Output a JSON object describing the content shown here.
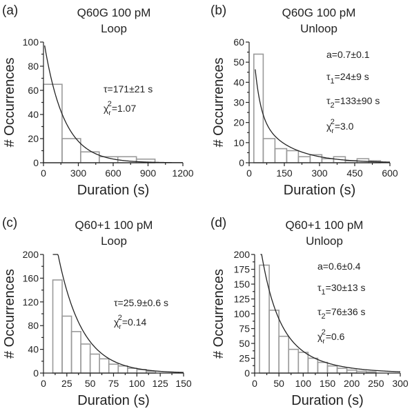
{
  "chart_data": [
    {
      "type": "bar",
      "panel_label": "(a)",
      "title": "Q60G 100 pM",
      "subtitle": "Loop",
      "xlabel": "Duration (s)",
      "ylabel": "# Occurrences",
      "xlim": [
        0,
        1200
      ],
      "ylim": [
        0,
        100
      ],
      "xticks": [
        0,
        300,
        600,
        900,
        1200
      ],
      "yticks": [
        0,
        20,
        40,
        60,
        80,
        100
      ],
      "bin_edges": [
        0,
        160,
        320,
        480,
        640,
        800,
        960
      ],
      "values": [
        65,
        20,
        9,
        5,
        5,
        3
      ],
      "fit": {
        "type": "exponential",
        "amplitude": 103,
        "tau": 171,
        "x_start": 10
      },
      "annotations": [
        "τ=171±21 s",
        "χr2=1.07"
      ]
    },
    {
      "type": "bar",
      "panel_label": "(b)",
      "title": "Q60G 100 pM",
      "subtitle": "Unloop",
      "xlabel": "Duration (s)",
      "ylabel": "# Occurrences",
      "xlim": [
        0,
        600
      ],
      "ylim": [
        0,
        60
      ],
      "xticks": [
        0,
        150,
        300,
        450,
        600
      ],
      "yticks": [
        0,
        10,
        20,
        30,
        40,
        50,
        60
      ],
      "bin_edges": [
        20,
        60,
        110,
        160,
        210,
        260,
        310,
        360,
        410,
        460,
        510,
        560
      ],
      "values": [
        54,
        12,
        7,
        6,
        3,
        4,
        2,
        3,
        1,
        2,
        1
      ],
      "fit": {
        "type": "double-exponential",
        "amplitude": 96,
        "a": 0.7,
        "tau1": 24,
        "tau2": 133,
        "x_start": 26
      },
      "annotations": [
        "a=0.7±0.1",
        "τ1=24±9 s",
        "τ2=133±90 s",
        "χr2=3.0"
      ]
    },
    {
      "type": "bar",
      "panel_label": "(c)",
      "title": "Q60+1 100 pM",
      "subtitle": "Loop",
      "xlabel": "Duration (s)",
      "ylabel": "# Occurrences",
      "xlim": [
        0,
        150
      ],
      "ylim": [
        0,
        200
      ],
      "xticks": [
        0,
        25,
        50,
        75,
        100,
        125,
        150
      ],
      "yticks": [
        0,
        40,
        80,
        120,
        160,
        200
      ],
      "bin_edges": [
        10,
        20,
        30,
        40,
        50,
        60,
        70,
        80,
        90,
        100,
        110,
        120
      ],
      "values": [
        157,
        96,
        70,
        49,
        32,
        24,
        15,
        12,
        8,
        6,
        3
      ],
      "fit": {
        "type": "exponential",
        "amplitude": 365,
        "tau": 25.9,
        "x_start": 10
      },
      "annotations": [
        "τ=25.9±0.6 s",
        "χr2=0.14"
      ]
    },
    {
      "type": "bar",
      "panel_label": "(d)",
      "title": "Q60+1 100 pM",
      "subtitle": "Unloop",
      "xlabel": "Duration (s)",
      "ylabel": "# Occurrences",
      "xlim": [
        0,
        300
      ],
      "ylim": [
        0,
        200
      ],
      "xticks": [
        0,
        50,
        100,
        150,
        200,
        250,
        300
      ],
      "yticks": [
        0,
        25,
        50,
        75,
        100,
        125,
        150,
        175,
        200
      ],
      "bin_edges": [
        10,
        30,
        50,
        70,
        90,
        110,
        130,
        150,
        170,
        190,
        210,
        230,
        250
      ],
      "values": [
        182,
        106,
        62,
        40,
        35,
        25,
        18,
        12,
        8,
        5,
        3,
        2
      ],
      "fit": {
        "type": "double-exponential",
        "amplitude": 285,
        "a": 0.6,
        "tau1": 30,
        "tau2": 76,
        "x_start": 12
      },
      "annotations": [
        "a=0.6±0.4",
        "τ1=30±13 s",
        "τ2=76±36 s",
        "χr2=0.6"
      ]
    }
  ]
}
